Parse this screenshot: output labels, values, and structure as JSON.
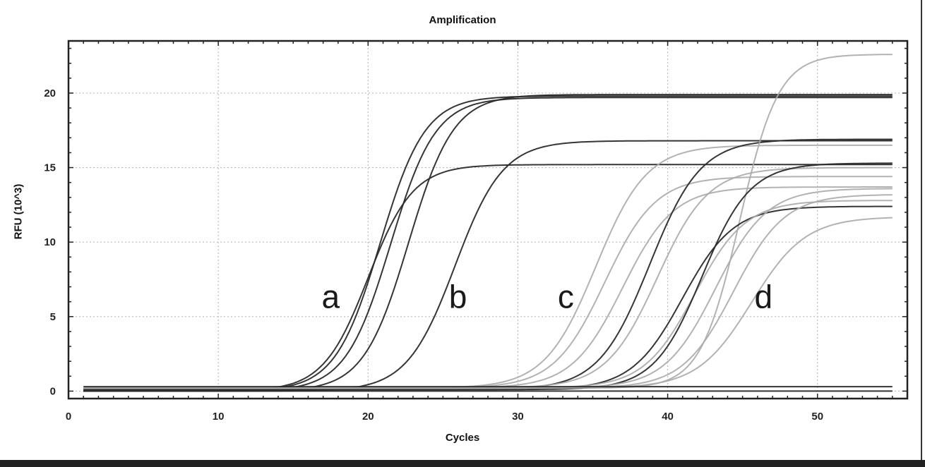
{
  "chart_data": {
    "type": "line",
    "title": "Amplification",
    "xlabel": "Cycles",
    "ylabel": "RFU (10^3)",
    "xlim": [
      0,
      56
    ],
    "ylim": [
      -0.5,
      23.5
    ],
    "xticks": [
      0,
      10,
      20,
      30,
      40,
      50
    ],
    "yticks": [
      0,
      5,
      10,
      15,
      20
    ],
    "grid": true,
    "annotations": [
      {
        "text": "a",
        "x": 17.5,
        "y": 6.3
      },
      {
        "text": "b",
        "x": 26.0,
        "y": 6.3
      },
      {
        "text": "c",
        "x": 33.2,
        "y": 6.3
      },
      {
        "text": "d",
        "x": 46.4,
        "y": 6.3
      }
    ],
    "series": [
      {
        "group": "a",
        "shade": "dark",
        "plateau": 19.8,
        "ct": 20.8,
        "slope": 1.5,
        "baseline": 0.0
      },
      {
        "group": "a",
        "shade": "dark",
        "plateau": 19.7,
        "ct": 21.5,
        "slope": 1.5,
        "baseline": 0.0
      },
      {
        "group": "a",
        "shade": "dark",
        "plateau": 15.2,
        "ct": 20.0,
        "slope": 1.5,
        "baseline": 0.0
      },
      {
        "group": "b",
        "shade": "dark",
        "plateau": 19.9,
        "ct": 22.7,
        "slope": 1.5,
        "baseline": 0.0
      },
      {
        "group": "b",
        "shade": "dark",
        "plateau": 16.8,
        "ct": 25.8,
        "slope": 1.6,
        "baseline": 0.0
      },
      {
        "group": "c",
        "shade": "light",
        "plateau": 16.3,
        "ct": 35.2,
        "slope": 1.7,
        "baseline": 0.2
      },
      {
        "group": "c",
        "shade": "light",
        "plateau": 14.2,
        "ct": 35.8,
        "slope": 1.7,
        "baseline": 0.2
      },
      {
        "group": "c",
        "shade": "light",
        "plateau": 13.5,
        "ct": 37.0,
        "slope": 1.7,
        "baseline": 0.2
      },
      {
        "group": "c",
        "shade": "dark",
        "plateau": 16.8,
        "ct": 38.8,
        "slope": 1.7,
        "baseline": 0.1
      },
      {
        "group": "c",
        "shade": "light",
        "plateau": 14.8,
        "ct": 39.3,
        "slope": 1.7,
        "baseline": 0.2
      },
      {
        "group": "d",
        "shade": "light",
        "plateau": 22.4,
        "ct": 44.8,
        "slope": 1.3,
        "baseline": 0.2
      },
      {
        "group": "d",
        "shade": "dark",
        "plateau": 12.3,
        "ct": 41.0,
        "slope": 1.7,
        "baseline": 0.1
      },
      {
        "group": "d",
        "shade": "light",
        "plateau": 12.6,
        "ct": 41.8,
        "slope": 1.7,
        "baseline": 0.2
      },
      {
        "group": "d",
        "shade": "dark",
        "plateau": 15.2,
        "ct": 42.3,
        "slope": 1.6,
        "baseline": 0.1
      },
      {
        "group": "d",
        "shade": "light",
        "plateau": 13.4,
        "ct": 43.2,
        "slope": 1.7,
        "baseline": 0.2
      },
      {
        "group": "d",
        "shade": "light",
        "plateau": 13.0,
        "ct": 44.4,
        "slope": 1.7,
        "baseline": 0.2
      },
      {
        "group": "d",
        "shade": "light",
        "plateau": 11.5,
        "ct": 45.6,
        "slope": 1.8,
        "baseline": 0.2
      },
      {
        "group": "baseline",
        "shade": "dark",
        "plateau": 0.0,
        "ct": 0,
        "slope": 1,
        "baseline": 0.3
      },
      {
        "group": "baseline",
        "shade": "dark",
        "plateau": 0.0,
        "ct": 0,
        "slope": 1,
        "baseline": 0.0
      }
    ],
    "x_start": 1,
    "x_end": 55
  },
  "colors": {
    "dark": "#2a2a2a",
    "light": "#aaaaaa",
    "grid": "#bbbbbb",
    "axis": "#222222"
  }
}
